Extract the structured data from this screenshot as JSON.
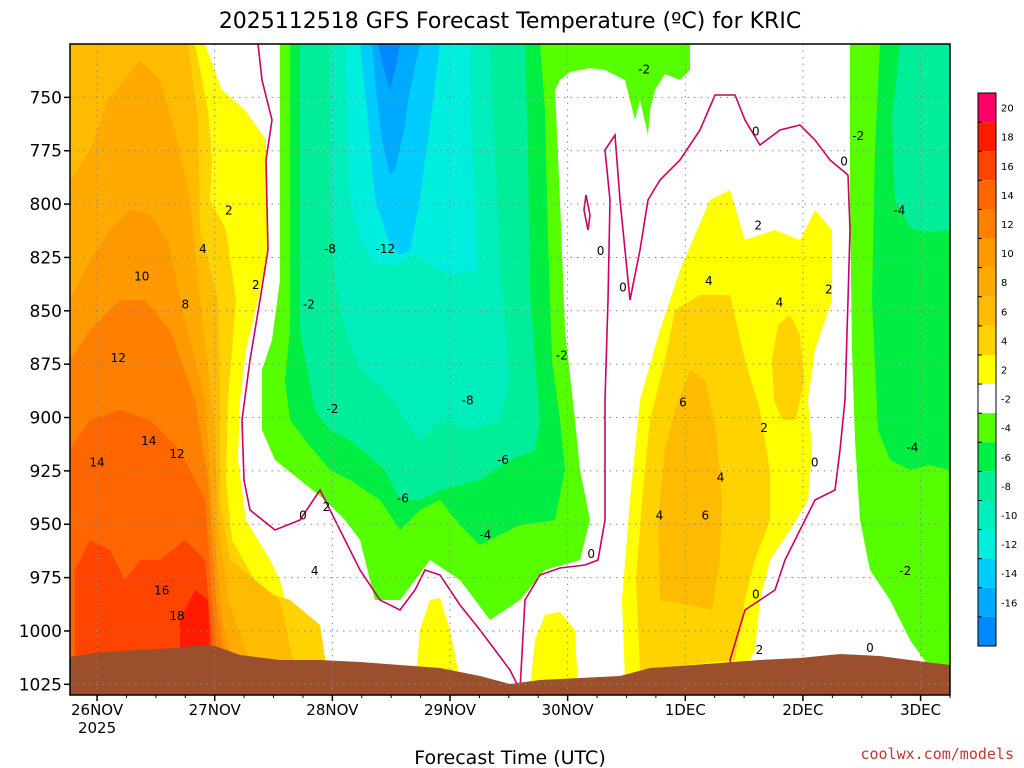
{
  "chart_data": {
    "type": "heatmap",
    "title": "2025112518 GFS Forecast Temperature (ºC) for KRIC",
    "xlabel": "Forecast Time (UTC)",
    "ylabel": "",
    "credit": "coolwx.com/models",
    "x_ticks": [
      "26NOV",
      "27NOV",
      "28NOV",
      "29NOV",
      "30NOV",
      "1DEC",
      "2DEC",
      "3DEC"
    ],
    "x_year": "2025",
    "x_tick_days": [
      0,
      1,
      2,
      3,
      4,
      5,
      6,
      7
    ],
    "x_range_days": [
      -0.23,
      7.25
    ],
    "y_ticks": [
      "750",
      "775",
      "800",
      "825",
      "850",
      "875",
      "900",
      "925",
      "950",
      "975",
      "1000",
      "1025"
    ],
    "y_tick_values": [
      750,
      775,
      800,
      825,
      850,
      875,
      900,
      925,
      950,
      975,
      1000,
      1025
    ],
    "y_range_hpa": [
      725,
      1030
    ],
    "colorbar": {
      "labels": [
        "20",
        "18",
        "16",
        "14",
        "12",
        "10",
        "8",
        "6",
        "4",
        "2",
        "-2",
        "-4",
        "-6",
        "-8",
        "-10",
        "-12",
        "-14",
        "-16"
      ],
      "bands": [
        {
          "low": 20,
          "high": 22,
          "color": "#ff0066"
        },
        {
          "low": 18,
          "high": 20,
          "color": "#ff1a00"
        },
        {
          "low": 16,
          "high": 18,
          "color": "#ff4400"
        },
        {
          "low": 14,
          "high": 16,
          "color": "#ff6600"
        },
        {
          "low": 12,
          "high": 14,
          "color": "#ff7f00"
        },
        {
          "low": 10,
          "high": 12,
          "color": "#ff9900"
        },
        {
          "low": 8,
          "high": 10,
          "color": "#ffaa00"
        },
        {
          "low": 6,
          "high": 8,
          "color": "#ffbb00"
        },
        {
          "low": 4,
          "high": 6,
          "color": "#ffd200"
        },
        {
          "low": 2,
          "high": 4,
          "color": "#ffff00"
        },
        {
          "low": -2,
          "high": 2,
          "color": "#ffffff"
        },
        {
          "low": -4,
          "high": -2,
          "color": "#55ff00"
        },
        {
          "low": -6,
          "high": -4,
          "color": "#00ee44"
        },
        {
          "low": -8,
          "high": -6,
          "color": "#00ee99"
        },
        {
          "low": -10,
          "high": -8,
          "color": "#00eebb"
        },
        {
          "low": -12,
          "high": -10,
          "color": "#00eedd"
        },
        {
          "low": -14,
          "high": -12,
          "color": "#00ccff"
        },
        {
          "low": -16,
          "high": -14,
          "color": "#00aaff"
        },
        {
          "low": -18,
          "high": -16,
          "color": "#0088ff"
        }
      ]
    },
    "zero_contour_color": "#cc0066",
    "terrain_color": "#9c4f2c",
    "contour_labels": [
      {
        "text": "2",
        "day": 1.12,
        "p": 803
      },
      {
        "text": "4",
        "day": 0.9,
        "p": 821
      },
      {
        "text": "10",
        "day": 0.38,
        "p": 834
      },
      {
        "text": "8",
        "day": 0.75,
        "p": 847
      },
      {
        "text": "12",
        "day": 0.18,
        "p": 872
      },
      {
        "text": "2",
        "day": 1.35,
        "p": 838
      },
      {
        "text": "-2",
        "day": 1.8,
        "p": 847
      },
      {
        "text": "14",
        "day": 0.44,
        "p": 911
      },
      {
        "text": "12",
        "day": 0.68,
        "p": 917
      },
      {
        "text": "14",
        "day": 0.0,
        "p": 921
      },
      {
        "text": "16",
        "day": 0.55,
        "p": 981
      },
      {
        "text": "18",
        "day": 0.68,
        "p": 993
      },
      {
        "text": "-8",
        "day": 1.98,
        "p": 821
      },
      {
        "text": "-12",
        "day": 2.45,
        "p": 821
      },
      {
        "text": "-2",
        "day": 2.0,
        "p": 896
      },
      {
        "text": "0",
        "day": 1.75,
        "p": 946
      },
      {
        "text": "2",
        "day": 1.95,
        "p": 942
      },
      {
        "text": "4",
        "day": 1.85,
        "p": 972
      },
      {
        "text": "-8",
        "day": 3.15,
        "p": 892
      },
      {
        "text": "-6",
        "day": 3.45,
        "p": 920
      },
      {
        "text": "-6",
        "day": 2.6,
        "p": 938
      },
      {
        "text": "-4",
        "day": 3.3,
        "p": 955
      },
      {
        "text": "-2",
        "day": 3.95,
        "p": 871
      },
      {
        "text": "0",
        "day": 4.2,
        "p": 964
      },
      {
        "text": "-2",
        "day": 4.65,
        "p": 737
      },
      {
        "text": "0",
        "day": 4.28,
        "p": 822
      },
      {
        "text": "0",
        "day": 4.47,
        "p": 839
      },
      {
        "text": "0",
        "day": 5.6,
        "p": 766
      },
      {
        "text": "-2",
        "day": 6.47,
        "p": 768
      },
      {
        "text": "0",
        "day": 6.35,
        "p": 780
      },
      {
        "text": "2",
        "day": 5.62,
        "p": 810
      },
      {
        "text": "4",
        "day": 5.2,
        "p": 836
      },
      {
        "text": "4",
        "day": 5.8,
        "p": 846
      },
      {
        "text": "2",
        "day": 6.22,
        "p": 840
      },
      {
        "text": "6",
        "day": 4.98,
        "p": 893
      },
      {
        "text": "2",
        "day": 5.67,
        "p": 905
      },
      {
        "text": "4",
        "day": 5.3,
        "p": 928
      },
      {
        "text": "0",
        "day": 6.1,
        "p": 921
      },
      {
        "text": "4",
        "day": 4.78,
        "p": 946
      },
      {
        "text": "6",
        "day": 5.17,
        "p": 946
      },
      {
        "text": "0",
        "day": 5.6,
        "p": 983
      },
      {
        "text": "2",
        "day": 5.63,
        "p": 1009
      },
      {
        "text": "0",
        "day": 6.57,
        "p": 1008
      },
      {
        "text": "-4",
        "day": 6.82,
        "p": 803
      },
      {
        "text": "-4",
        "day": 6.93,
        "p": 914
      },
      {
        "text": "-2",
        "day": 6.87,
        "p": 972
      }
    ]
  }
}
